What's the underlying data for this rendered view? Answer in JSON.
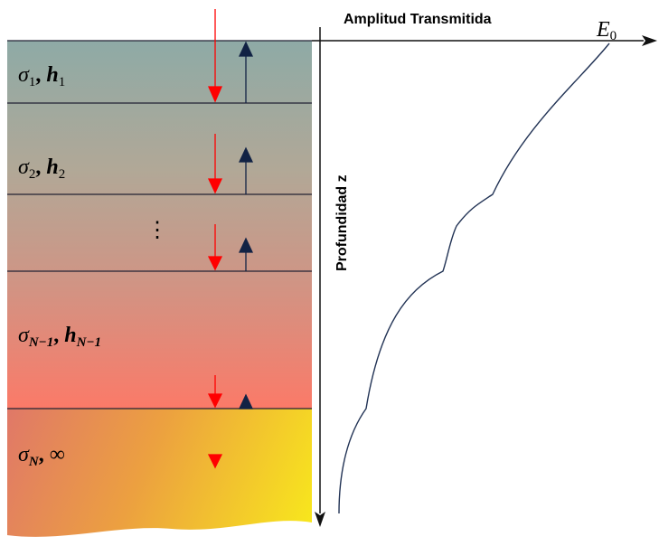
{
  "axis": {
    "x_label": "Amplitud Transmitida",
    "y_label": "Profundidad  z",
    "curve_label": "E",
    "curve_label_sub": "0"
  },
  "layers": [
    {
      "symbol": "σ",
      "symbol_sub": "1",
      "separator": ",",
      "thickness": "h",
      "thickness_sub": "1"
    },
    {
      "symbol": "σ",
      "symbol_sub": "2",
      "separator": ",",
      "thickness": "h",
      "thickness_sub": "2"
    },
    {
      "ellipsis": "⋮"
    },
    {
      "symbol": "σ",
      "symbol_sub": "N−1",
      "separator": ",",
      "thickness": "h",
      "thickness_sub": "N−1"
    },
    {
      "symbol": "σ",
      "symbol_sub": "N",
      "separator": ",",
      "thickness": "∞"
    }
  ]
}
